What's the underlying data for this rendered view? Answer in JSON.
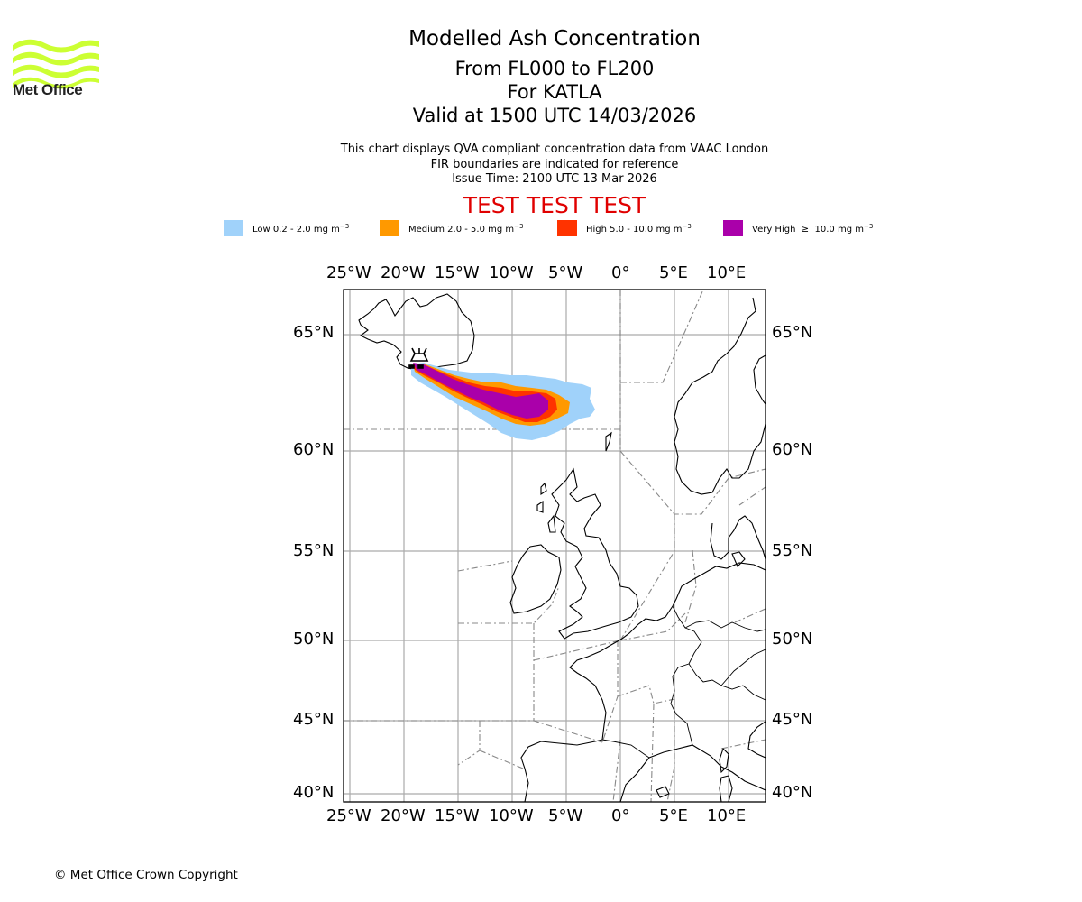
{
  "logo": {
    "text": "Met Office",
    "color": "#ccff33"
  },
  "header": {
    "title": "Modelled Ash Concentration",
    "levels": "From FL000 to FL200",
    "volcano": "For KATLA",
    "valid": "Valid at 1500 UTC 14/03/2026"
  },
  "subtitle": {
    "line1": "This chart displays QVA compliant concentration data from VAAC London",
    "line2": "FIR boundaries are indicated for reference",
    "line3": "Issue Time: 2100 UTC 13 Mar 2026"
  },
  "test_banner": "TEST TEST TEST",
  "legend": [
    {
      "label": "Low 0.2 - 2.0 mg m",
      "exp": "−3",
      "color": "#a0d2fa"
    },
    {
      "label": "Medium 2.0 - 5.0 mg m",
      "exp": "−3",
      "color": "#ff9900"
    },
    {
      "label": "High 5.0 - 10.0 mg m",
      "exp": "−3",
      "color": "#ff3300"
    },
    {
      "label": "Very High  ≥  10.0 mg m",
      "exp": "−3",
      "color": "#aa00aa"
    }
  ],
  "map": {
    "lon_labels": [
      "25°W",
      "20°W",
      "15°W",
      "10°W",
      "5°W",
      "0°",
      "5°E",
      "10°E"
    ],
    "lat_labels": [
      "65°N",
      "60°N",
      "55°N",
      "50°N",
      "45°N",
      "40°N"
    ],
    "lon_values": [
      -25,
      -20,
      -15,
      -10,
      -5,
      0,
      5,
      10
    ],
    "lat_values": [
      65,
      60,
      55,
      50,
      45,
      40
    ],
    "extent": {
      "lon_min": -25.6,
      "lon_max": 13.4,
      "lat_min": 39.4,
      "lat_max": 67.5
    },
    "volcano_symbol": "volcano-icon"
  },
  "footer": {
    "copyright": "© Met Office Crown Copyright"
  }
}
